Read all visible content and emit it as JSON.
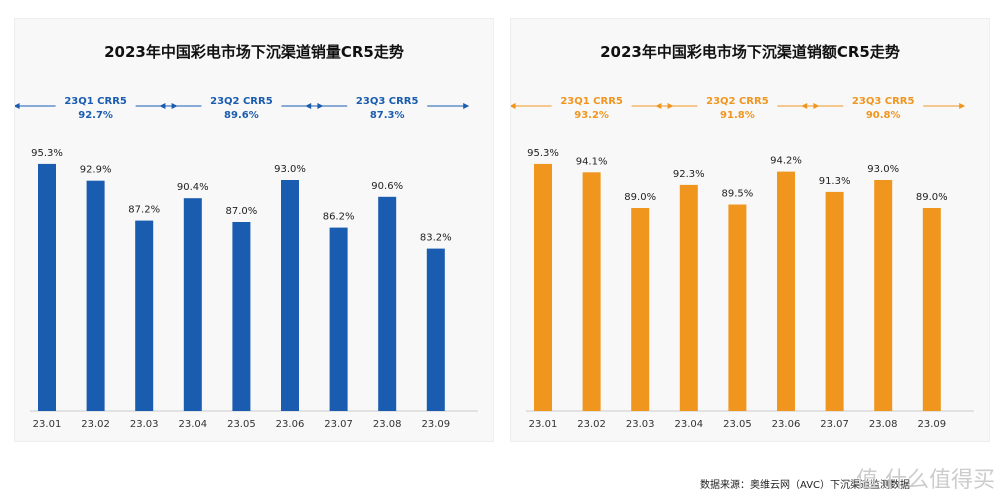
{
  "chart_data": [
    {
      "type": "bar",
      "title": "2023年中国彩电市场下沉渠道销量CR5走势",
      "categories": [
        "23.01",
        "23.02",
        "23.03",
        "23.04",
        "23.05",
        "23.06",
        "23.07",
        "23.08",
        "23.09"
      ],
      "values": [
        95.3,
        92.9,
        87.2,
        90.4,
        87.0,
        93.0,
        86.2,
        90.6,
        83.2
      ],
      "data_labels": [
        "95.3%",
        "92.9%",
        "87.2%",
        "90.4%",
        "87.0%",
        "93.0%",
        "86.2%",
        "90.6%",
        "83.2%"
      ],
      "color": "#1a5cb0",
      "annotations": [
        {
          "label": "23Q1 CRR5",
          "value": "92.7%"
        },
        {
          "label": "23Q2 CRR5",
          "value": "89.6%"
        },
        {
          "label": "23Q3 CRR5",
          "value": "87.3%"
        }
      ],
      "grid": false
    },
    {
      "type": "bar",
      "title": "2023年中国彩电市场下沉渠道销额CR5走势",
      "categories": [
        "23.01",
        "23.02",
        "23.03",
        "23.04",
        "23.05",
        "23.06",
        "23.07",
        "23.08",
        "23.09"
      ],
      "values": [
        95.3,
        94.1,
        89.0,
        92.3,
        89.5,
        94.2,
        91.3,
        93.0,
        89.0
      ],
      "data_labels": [
        "95.3%",
        "94.1%",
        "89.0%",
        "92.3%",
        "89.5%",
        "94.2%",
        "91.3%",
        "93.0%",
        "89.0%"
      ],
      "color": "#f0961f",
      "annotations": [
        {
          "label": "23Q1 CRR5",
          "value": "93.2%"
        },
        {
          "label": "23Q2 CRR5",
          "value": "91.8%"
        },
        {
          "label": "23Q3 CRR5",
          "value": "90.8%"
        }
      ],
      "grid": false
    }
  ],
  "footer": {
    "source": "数据来源：奥维云网（AVC）下沉渠道监测数据",
    "watermark": "值 什么值得买"
  }
}
